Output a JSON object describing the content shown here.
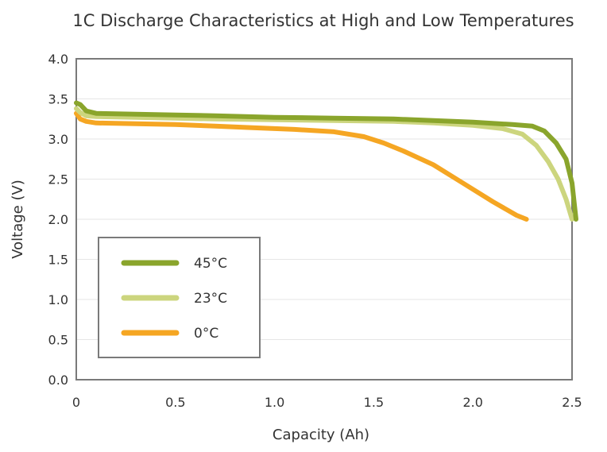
{
  "chart_data": {
    "type": "line",
    "title": "1C Discharge Characteristics at High and Low Temperatures",
    "xlabel": "Capacity (Ah)",
    "ylabel": "Voltage (V)",
    "xlim": [
      0,
      2.5
    ],
    "ylim": [
      0,
      4.0
    ],
    "x_ticks": [
      "0",
      "0.5",
      "1.0",
      "1.5",
      "2.0",
      "2.5"
    ],
    "y_ticks": [
      "0.0",
      "0.5",
      "1.0",
      "1.5",
      "2.0",
      "2.5",
      "3.0",
      "3.5",
      "4.0"
    ],
    "grid": "horizontal",
    "legend_position": "bottom-left",
    "series": [
      {
        "name": "45°C",
        "color": "#8aa52c",
        "points": [
          [
            0.0,
            3.45
          ],
          [
            0.02,
            3.43
          ],
          [
            0.05,
            3.35
          ],
          [
            0.1,
            3.32
          ],
          [
            0.3,
            3.31
          ],
          [
            0.5,
            3.3
          ],
          [
            0.7,
            3.29
          ],
          [
            1.0,
            3.27
          ],
          [
            1.3,
            3.26
          ],
          [
            1.6,
            3.25
          ],
          [
            1.8,
            3.23
          ],
          [
            2.0,
            3.21
          ],
          [
            2.2,
            3.18
          ],
          [
            2.3,
            3.16
          ],
          [
            2.36,
            3.1
          ],
          [
            2.42,
            2.95
          ],
          [
            2.47,
            2.75
          ],
          [
            2.5,
            2.45
          ],
          [
            2.52,
            2.0
          ]
        ]
      },
      {
        "name": "23°C",
        "color": "#ccd57e",
        "points": [
          [
            0.0,
            3.38
          ],
          [
            0.02,
            3.33
          ],
          [
            0.05,
            3.29
          ],
          [
            0.1,
            3.28
          ],
          [
            0.3,
            3.27
          ],
          [
            0.5,
            3.26
          ],
          [
            0.7,
            3.25
          ],
          [
            1.0,
            3.24
          ],
          [
            1.3,
            3.23
          ],
          [
            1.6,
            3.22
          ],
          [
            1.8,
            3.2
          ],
          [
            2.0,
            3.17
          ],
          [
            2.15,
            3.13
          ],
          [
            2.25,
            3.06
          ],
          [
            2.32,
            2.92
          ],
          [
            2.38,
            2.72
          ],
          [
            2.43,
            2.5
          ],
          [
            2.47,
            2.25
          ],
          [
            2.5,
            2.0
          ]
        ]
      },
      {
        "name": "0°C",
        "color": "#f5a623",
        "points": [
          [
            0.0,
            3.32
          ],
          [
            0.02,
            3.25
          ],
          [
            0.05,
            3.22
          ],
          [
            0.1,
            3.2
          ],
          [
            0.3,
            3.19
          ],
          [
            0.5,
            3.18
          ],
          [
            0.7,
            3.16
          ],
          [
            0.9,
            3.14
          ],
          [
            1.1,
            3.12
          ],
          [
            1.3,
            3.09
          ],
          [
            1.45,
            3.03
          ],
          [
            1.55,
            2.95
          ],
          [
            1.65,
            2.85
          ],
          [
            1.8,
            2.68
          ],
          [
            1.95,
            2.45
          ],
          [
            2.1,
            2.22
          ],
          [
            2.22,
            2.05
          ],
          [
            2.27,
            2.0
          ]
        ]
      }
    ]
  }
}
